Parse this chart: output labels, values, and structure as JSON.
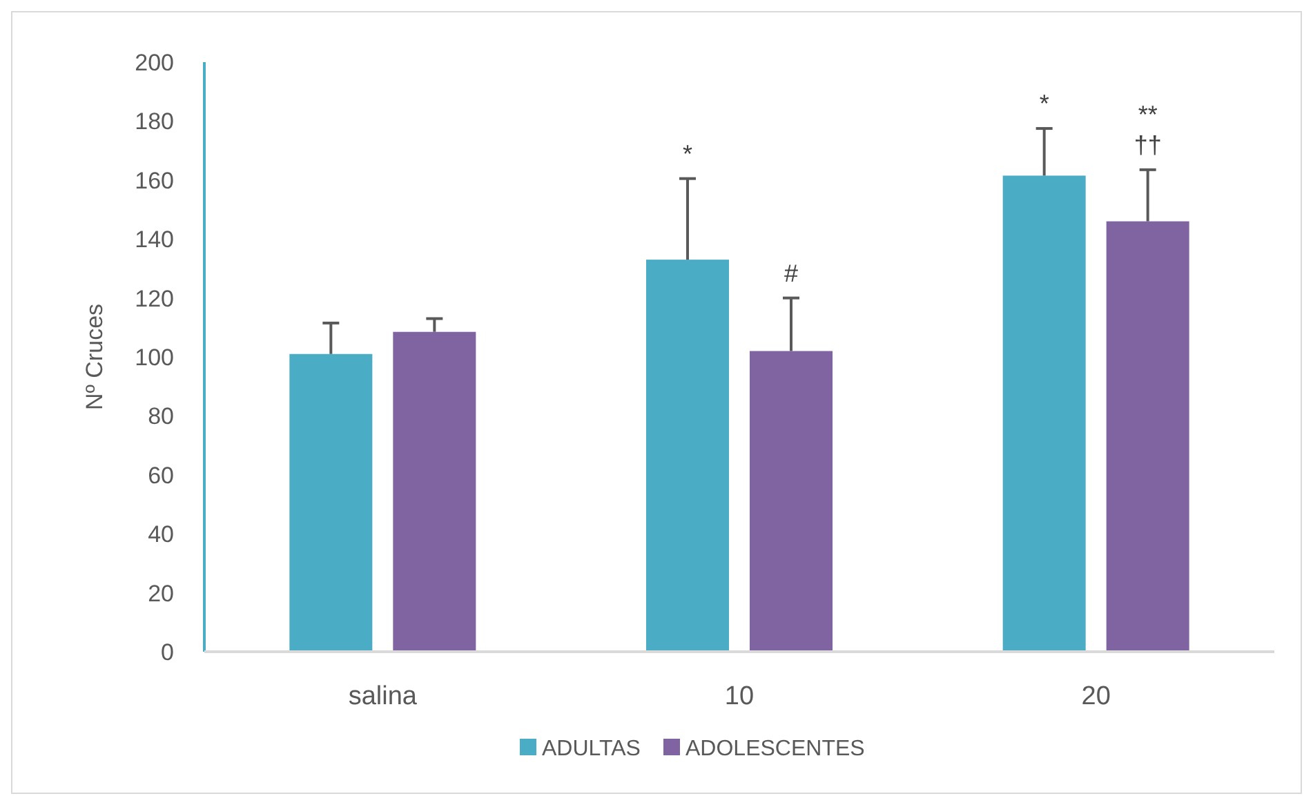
{
  "chart_data": {
    "type": "bar",
    "ylabel": "Nº Cruces",
    "categories": [
      "salina",
      "10",
      "20"
    ],
    "series": [
      {
        "name": "ADULTAS",
        "color": "#4bacc6",
        "values": [
          101,
          133,
          161.5
        ],
        "errors": [
          [
            101,
            111.5
          ],
          [
            133,
            160.5
          ],
          [
            161.5,
            177.5
          ]
        ]
      },
      {
        "name": "ADOLESCENTES",
        "color": "#8064a2",
        "values": [
          108.5,
          102,
          146
        ],
        "errors": [
          [
            108.5,
            113
          ],
          [
            102,
            120
          ],
          [
            146,
            163.5
          ]
        ]
      }
    ],
    "ylim": [
      0,
      200
    ],
    "yticks": [
      0,
      20,
      40,
      60,
      80,
      100,
      120,
      140,
      160,
      180,
      200
    ],
    "grid": false,
    "legend": "bottom",
    "annotations": [
      "*",
      "#",
      "*",
      "††",
      "**"
    ]
  }
}
